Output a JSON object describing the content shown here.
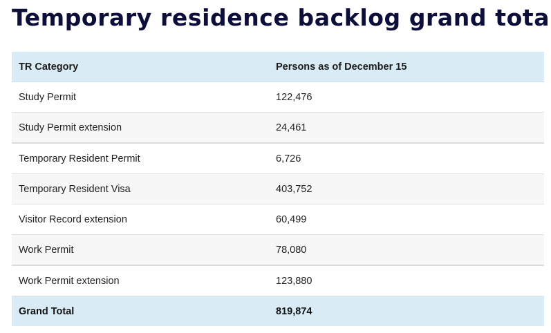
{
  "page": {
    "title": "Temporary residence backlog grand total"
  },
  "table": {
    "headers": {
      "category": "TR Category",
      "persons": "Persons as of December 15"
    },
    "rows": [
      {
        "category": "Study Permit",
        "persons": "122,476"
      },
      {
        "category": "Study Permit extension",
        "persons": "24,461"
      },
      {
        "category": "Temporary Resident Permit",
        "persons": "6,726"
      },
      {
        "category": "Temporary Resident Visa",
        "persons": "403,752"
      },
      {
        "category": "Visitor Record extension",
        "persons": "60,499"
      },
      {
        "category": "Work Permit",
        "persons": "78,080"
      },
      {
        "category": "Work Permit extension",
        "persons": "123,880"
      }
    ],
    "total": {
      "category": "Grand Total",
      "persons": "819,874"
    }
  },
  "colors": {
    "title": "#0e0e3a",
    "header_background": "#d9ecf6",
    "stripe_background": "#f7f7f7"
  }
}
